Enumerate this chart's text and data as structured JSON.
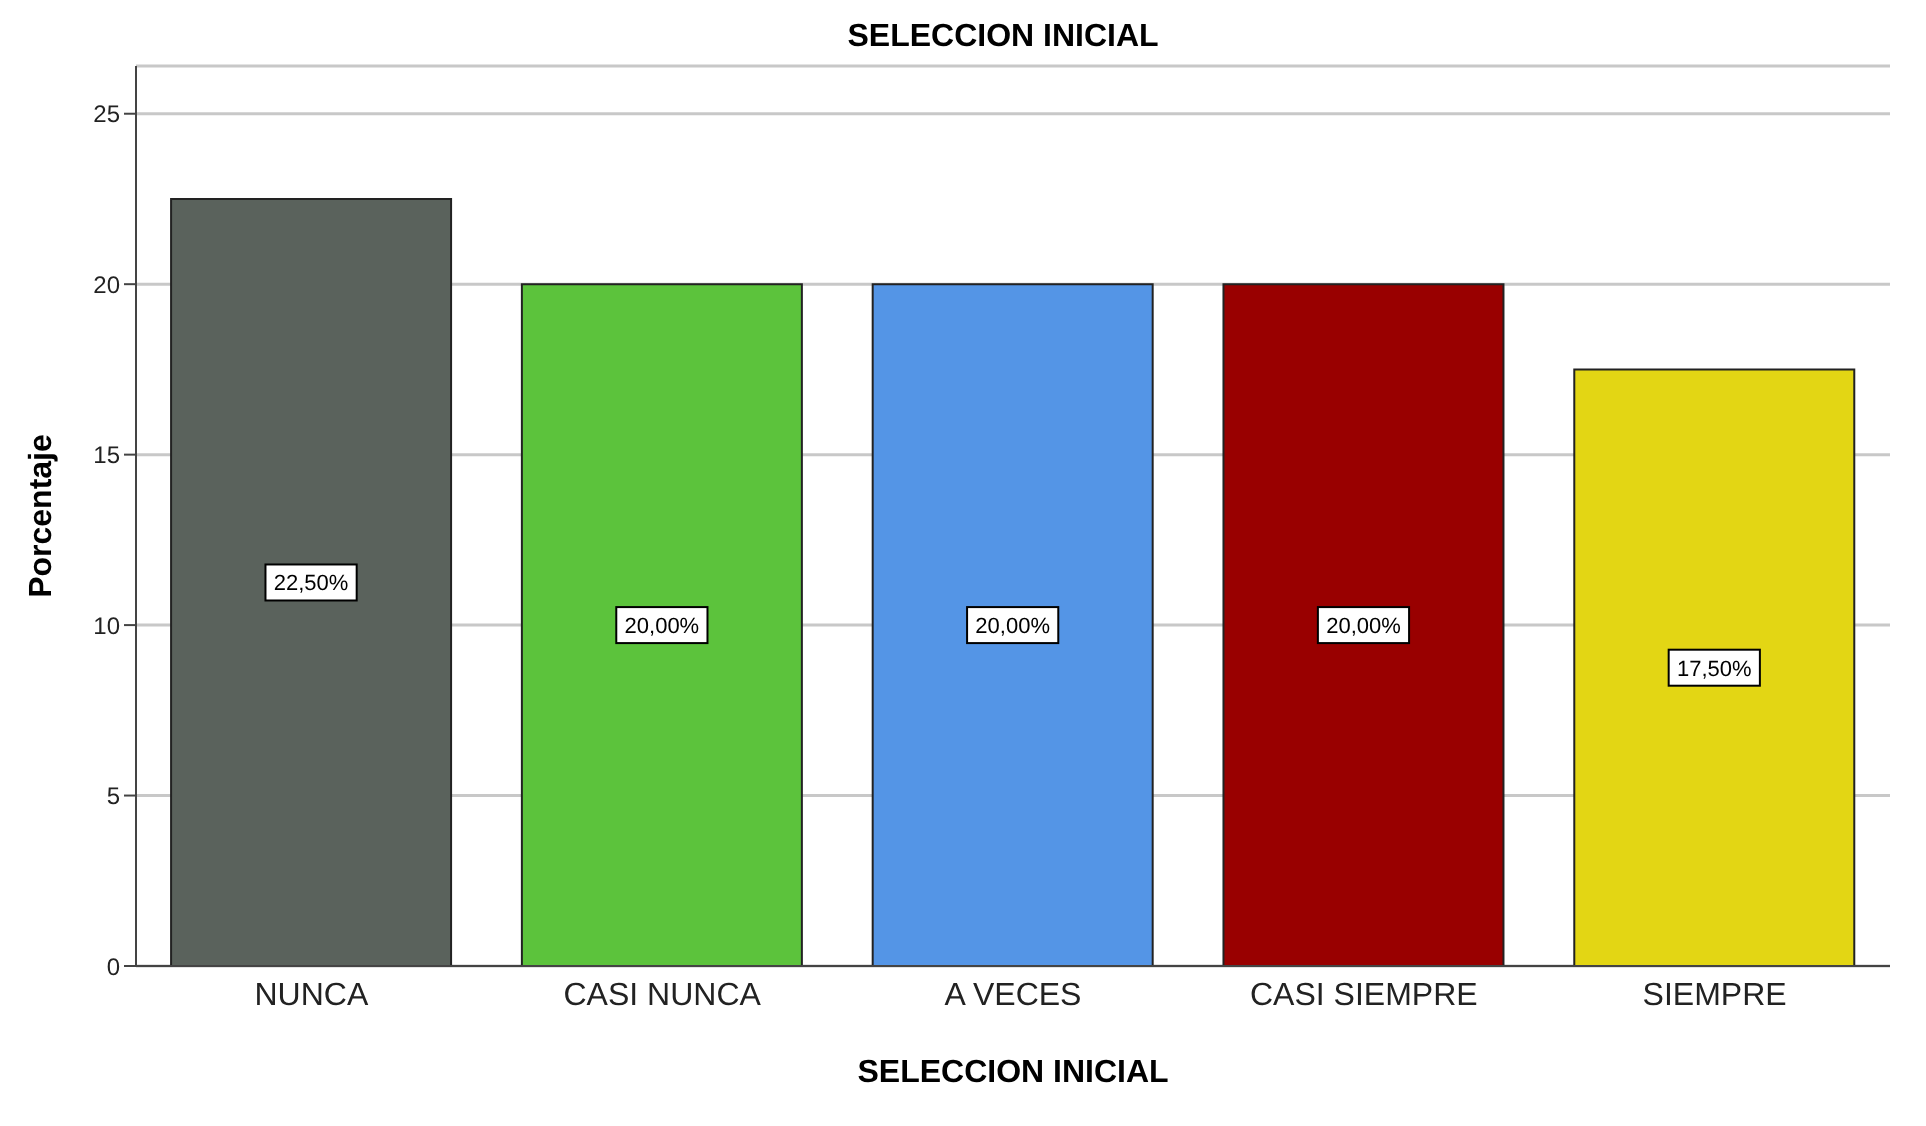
{
  "chart_data": {
    "type": "bar",
    "title": "SELECCION INICIAL",
    "xlabel": "SELECCION INICIAL",
    "ylabel": "Porcentaje",
    "categories": [
      "NUNCA",
      "CASI NUNCA",
      "A VECES",
      "CASI SIEMPRE",
      "SIEMPRE"
    ],
    "values": [
      22.5,
      20,
      20,
      20,
      17.5
    ],
    "colors": [
      "#5a625c",
      "#5cc33c",
      "#5495e6",
      "#990000",
      "#e3d614"
    ],
    "value_labels": [
      "22,50%",
      "20,00%",
      "20,00%",
      "20,00%",
      "17,50%"
    ],
    "ylim": [
      0,
      26.4
    ],
    "yticks": [
      0,
      5,
      10,
      15,
      20,
      25
    ],
    "grid": "y"
  }
}
